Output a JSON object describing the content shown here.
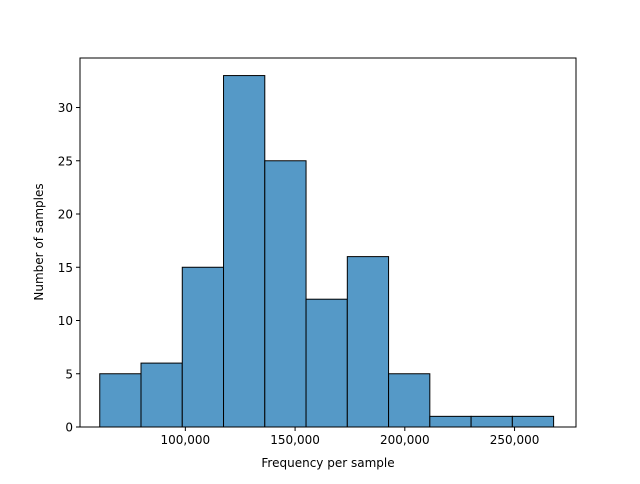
{
  "chart_data": {
    "type": "bar",
    "subtype": "histogram",
    "xlabel": "Frequency per sample",
    "ylabel": "Number of samples",
    "x_ticks": [
      {
        "value": 100000,
        "label": "100,000"
      },
      {
        "value": 150000,
        "label": "150,000"
      },
      {
        "value": 200000,
        "label": "200,000"
      },
      {
        "value": 250000,
        "label": "250,000"
      }
    ],
    "y_ticks": [
      {
        "value": 0,
        "label": "0"
      },
      {
        "value": 5,
        "label": "5"
      },
      {
        "value": 10,
        "label": "10"
      },
      {
        "value": 15,
        "label": "15"
      },
      {
        "value": 20,
        "label": "20"
      },
      {
        "value": 25,
        "label": "25"
      },
      {
        "value": 30,
        "label": "30"
      }
    ],
    "xlim": [
      52000,
      278000
    ],
    "ylim": [
      0,
      34.65
    ],
    "bins": [
      {
        "start": 61000,
        "end": 79800,
        "count": 5
      },
      {
        "start": 79800,
        "end": 98600,
        "count": 6
      },
      {
        "start": 98600,
        "end": 117400,
        "count": 15
      },
      {
        "start": 117400,
        "end": 136200,
        "count": 33
      },
      {
        "start": 136200,
        "end": 155000,
        "count": 25
      },
      {
        "start": 155000,
        "end": 173800,
        "count": 12
      },
      {
        "start": 173800,
        "end": 192600,
        "count": 16
      },
      {
        "start": 192600,
        "end": 211400,
        "count": 5
      },
      {
        "start": 211400,
        "end": 230200,
        "count": 1
      },
      {
        "start": 230200,
        "end": 249000,
        "count": 1
      },
      {
        "start": 249000,
        "end": 267800,
        "count": 1
      }
    ],
    "bar_color": "#5599c7",
    "edge_color": "#000000",
    "grid": false,
    "legend": "none"
  }
}
